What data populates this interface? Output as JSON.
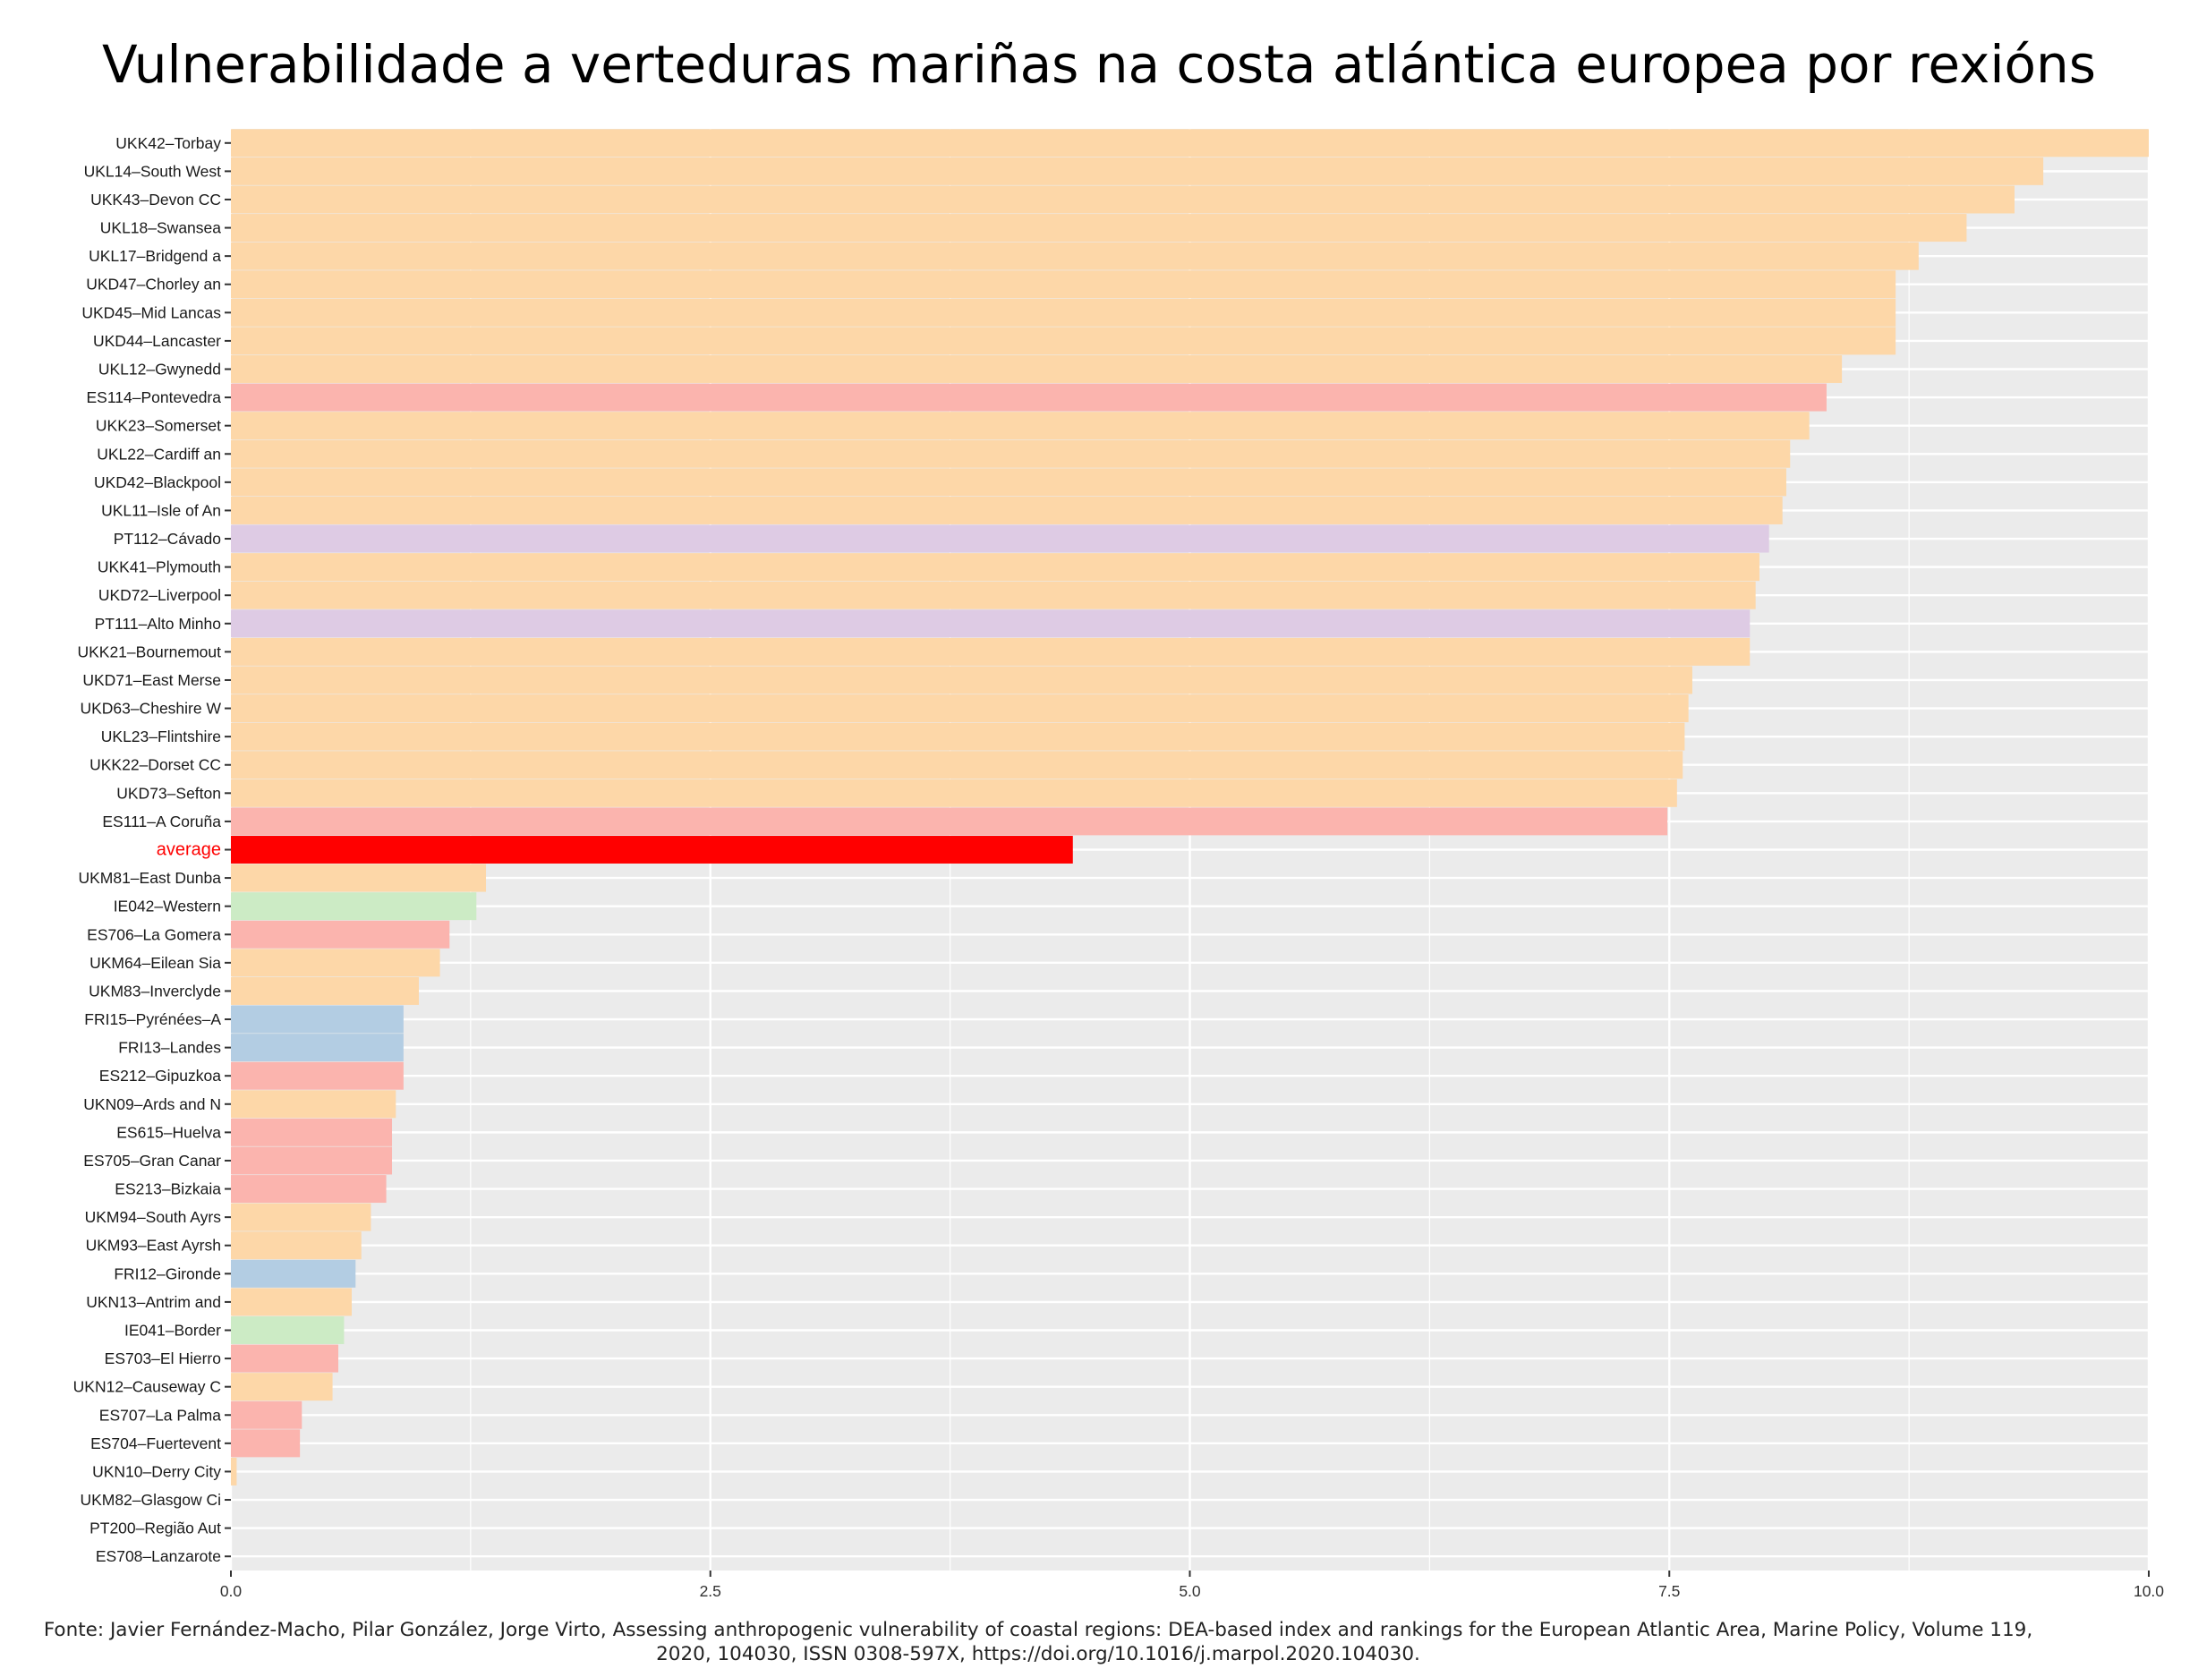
{
  "chart_data": {
    "type": "bar",
    "orientation": "horizontal",
    "title": "Vulnerabilidade a verteduras mariñas na costa atlántica europea por rexións",
    "xlabel": "",
    "ylabel": "",
    "xlim": [
      0,
      10
    ],
    "x_ticks": [
      "0.0",
      "2.5",
      "5.0",
      "7.5",
      "10.0"
    ],
    "grid": true,
    "legend": "none",
    "colors": {
      "UK": "#fdd7a8",
      "ES": "#fbb4ae",
      "PT": "#decbe4",
      "IE": "#ccebc5",
      "FR": "#b3cde3",
      "average": "#ff0000",
      "average_label": "#ff0000",
      "panel_background": "#ebebeb",
      "grid": "#ffffff"
    },
    "bars": [
      {
        "label": "UKK42–Torbay",
        "value": 10.0,
        "group": "UK"
      },
      {
        "label": "UKL14–South West",
        "value": 9.45,
        "group": "UK"
      },
      {
        "label": "UKK43–Devon CC",
        "value": 9.3,
        "group": "UK"
      },
      {
        "label": "UKL18–Swansea",
        "value": 9.05,
        "group": "UK"
      },
      {
        "label": "UKL17–Bridgend a",
        "value": 8.8,
        "group": "UK"
      },
      {
        "label": "UKD47–Chorley an",
        "value": 8.68,
        "group": "UK"
      },
      {
        "label": "UKD45–Mid Lancas",
        "value": 8.68,
        "group": "UK"
      },
      {
        "label": "UKD44–Lancaster",
        "value": 8.68,
        "group": "UK"
      },
      {
        "label": "UKL12–Gwynedd",
        "value": 8.4,
        "group": "UK"
      },
      {
        "label": "ES114–Pontevedra",
        "value": 8.32,
        "group": "ES"
      },
      {
        "label": "UKK23–Somerset",
        "value": 8.23,
        "group": "UK"
      },
      {
        "label": "UKL22–Cardiff an",
        "value": 8.13,
        "group": "UK"
      },
      {
        "label": "UKD42–Blackpool",
        "value": 8.11,
        "group": "UK"
      },
      {
        "label": "UKL11–Isle of An",
        "value": 8.09,
        "group": "UK"
      },
      {
        "label": "PT112–Cávado",
        "value": 8.02,
        "group": "PT"
      },
      {
        "label": "UKK41–Plymouth",
        "value": 7.97,
        "group": "UK"
      },
      {
        "label": "UKD72–Liverpool",
        "value": 7.95,
        "group": "UK"
      },
      {
        "label": "PT111–Alto Minho",
        "value": 7.92,
        "group": "PT"
      },
      {
        "label": "UKK21–Bournemout",
        "value": 7.92,
        "group": "UK"
      },
      {
        "label": "UKD71–East Merse",
        "value": 7.62,
        "group": "UK"
      },
      {
        "label": "UKD63–Cheshire W",
        "value": 7.6,
        "group": "UK"
      },
      {
        "label": "UKL23–Flintshire",
        "value": 7.58,
        "group": "UK"
      },
      {
        "label": "UKK22–Dorset CC",
        "value": 7.57,
        "group": "UK"
      },
      {
        "label": "UKD73–Sefton",
        "value": 7.54,
        "group": "UK"
      },
      {
        "label": "ES111–A Coruña",
        "value": 7.49,
        "group": "ES"
      },
      {
        "label": "average",
        "value": 4.39,
        "group": "average"
      },
      {
        "label": "UKM81–East Dunba",
        "value": 1.33,
        "group": "UK"
      },
      {
        "label": "IE042–Western",
        "value": 1.28,
        "group": "IE"
      },
      {
        "label": "ES706–La Gomera",
        "value": 1.14,
        "group": "ES"
      },
      {
        "label": "UKM64–Eilean Sia",
        "value": 1.09,
        "group": "UK"
      },
      {
        "label": "UKM83–Inverclyde",
        "value": 0.98,
        "group": "UK"
      },
      {
        "label": "FRI15–Pyrénées–A",
        "value": 0.9,
        "group": "FR"
      },
      {
        "label": "FRI13–Landes",
        "value": 0.9,
        "group": "FR"
      },
      {
        "label": "ES212–Gipuzkoa",
        "value": 0.9,
        "group": "ES"
      },
      {
        "label": "UKN09–Ards and N",
        "value": 0.86,
        "group": "UK"
      },
      {
        "label": "ES615–Huelva",
        "value": 0.84,
        "group": "ES"
      },
      {
        "label": "ES705–Gran Canar",
        "value": 0.84,
        "group": "ES"
      },
      {
        "label": "ES213–Bizkaia",
        "value": 0.81,
        "group": "ES"
      },
      {
        "label": "UKM94–South Ayrs",
        "value": 0.73,
        "group": "UK"
      },
      {
        "label": "UKM93–East Ayrsh",
        "value": 0.68,
        "group": "UK"
      },
      {
        "label": "FRI12–Gironde",
        "value": 0.65,
        "group": "FR"
      },
      {
        "label": "UKN13–Antrim and",
        "value": 0.63,
        "group": "UK"
      },
      {
        "label": "IE041–Border",
        "value": 0.59,
        "group": "IE"
      },
      {
        "label": "ES703–El Hierro",
        "value": 0.56,
        "group": "ES"
      },
      {
        "label": "UKN12–Causeway C",
        "value": 0.53,
        "group": "UK"
      },
      {
        "label": "ES707–La Palma",
        "value": 0.37,
        "group": "ES"
      },
      {
        "label": "ES704–Fuertevent",
        "value": 0.36,
        "group": "ES"
      },
      {
        "label": "UKN10–Derry City",
        "value": 0.03,
        "group": "UK"
      },
      {
        "label": "UKM82–Glasgow Ci",
        "value": 0.0,
        "group": "UK"
      },
      {
        "label": "PT200–Região Aut",
        "value": 0.0,
        "group": "PT"
      },
      {
        "label": "ES708–Lanzarote",
        "value": 0.0,
        "group": "ES"
      }
    ]
  },
  "source_note": "Fonte: Javier Fernández-Macho, Pilar González, Jorge Virto, Assessing anthropogenic vulnerability of coastal regions: DEA-based index and rankings for the European Atlantic Area, Marine Policy, Volume 119, 2020, 104030, ISSN 0308-597X, https://doi.org/10.1016/j.marpol.2020.104030."
}
